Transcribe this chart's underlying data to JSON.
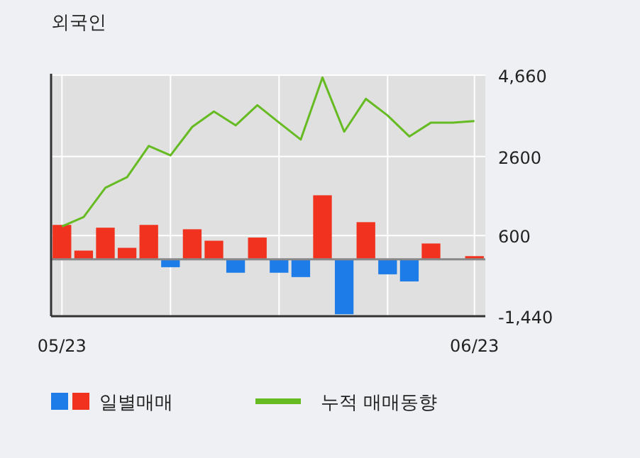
{
  "chart_data": {
    "type": "bar",
    "title": "외국인",
    "categories": [
      "05/23",
      null,
      null,
      null,
      null,
      null,
      null,
      null,
      null,
      null,
      null,
      null,
      null,
      null,
      null,
      null,
      null,
      null,
      null,
      "06/23"
    ],
    "series": [
      {
        "name": "일별매매",
        "values": [
          870,
          220,
          800,
          290,
          870,
          -200,
          760,
          470,
          -340,
          550,
          -340,
          -450,
          1620,
          -1390,
          940,
          -380,
          -560,
          400,
          0,
          80
        ],
        "colors": [
          "#f0321e",
          "#f0321e",
          "#f0321e",
          "#f0321e",
          "#f0321e",
          "#1e7ce8",
          "#f0321e",
          "#f0321e",
          "#1e7ce8",
          "#f0321e",
          "#1e7ce8",
          "#1e7ce8",
          "#f0321e",
          "#1e7ce8",
          "#f0321e",
          "#1e7ce8",
          "#1e7ce8",
          "#f0321e",
          "#f0321e",
          "#f0321e"
        ]
      },
      {
        "name": "누적 매매동향",
        "type": "line",
        "color": "#66bb22",
        "values": [
          830,
          1070,
          1810,
          2080,
          2870,
          2630,
          3350,
          3740,
          3390,
          3900,
          3460,
          3030,
          4600,
          3230,
          4060,
          3640,
          3110,
          3460,
          3460,
          3500
        ]
      }
    ],
    "ylim": [
      -1440,
      4660
    ],
    "yticks": [
      {
        "value": 4660,
        "label": "4,660"
      },
      2600,
      600,
      {
        "value": -1440,
        "label": "-1,440"
      }
    ],
    "grid": true,
    "legend": "bottom",
    "marker": "none",
    "line_style": "solid"
  }
}
